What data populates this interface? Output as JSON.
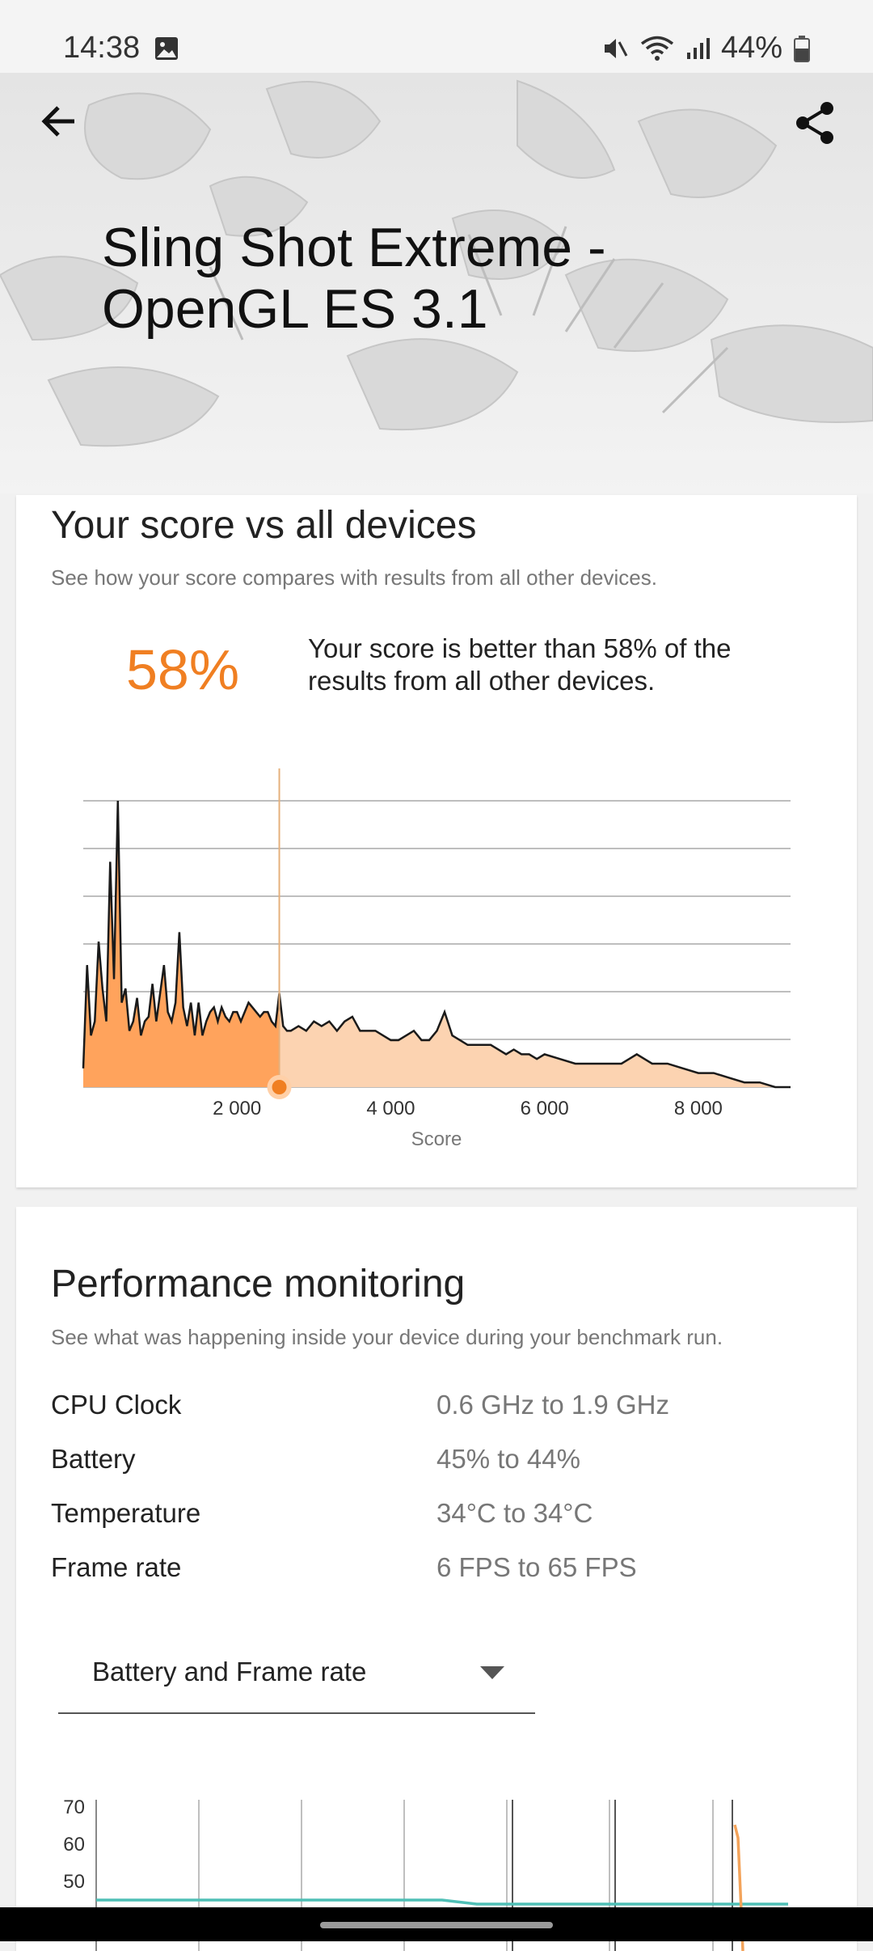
{
  "status_bar": {
    "time": "14:38",
    "battery_percent": "44%",
    "icons": [
      "gallery-icon",
      "mute-icon",
      "wifi-icon",
      "signal-icon",
      "battery-icon"
    ]
  },
  "header": {
    "title": "Sling Shot Extreme - OpenGL ES 3.1",
    "back_icon": "arrow-left-icon",
    "share_icon": "share-icon"
  },
  "score_section": {
    "title": "Your score vs all devices",
    "subtitle": "See how your score compares with results from all other devices.",
    "percentile": "58%",
    "description": "Your score is better than 58% of the results from all other devices.",
    "accent_color": "#f07f22"
  },
  "performance": {
    "title": "Performance monitoring",
    "subtitle": "See what was happening inside your device during your benchmark run.",
    "rows": [
      {
        "label": "CPU Clock",
        "value": "0.6 GHz to 1.9 GHz"
      },
      {
        "label": "Battery",
        "value": "45% to 44%"
      },
      {
        "label": "Temperature",
        "value": "34°C to 34°C"
      },
      {
        "label": "Frame rate",
        "value": "6 FPS to 65 FPS"
      }
    ],
    "dropdown": {
      "selected": "Battery and Frame rate"
    }
  },
  "chart_data": [
    {
      "type": "area",
      "xlabel": "Score",
      "x_ticks": [
        2000,
        4000,
        6000,
        8000
      ],
      "x_tick_labels": [
        "2 000",
        "4 000",
        "6 000",
        "8 000"
      ],
      "xlim": [
        0,
        9200
      ],
      "your_score": 2550,
      "highlight_color": "#f07f22",
      "fill_before": "#ffa35c",
      "fill_after": "#fcd3b1",
      "grid": true,
      "x": [
        0,
        50,
        100,
        150,
        200,
        250,
        300,
        350,
        400,
        450,
        500,
        550,
        600,
        650,
        700,
        750,
        800,
        850,
        900,
        950,
        1000,
        1050,
        1100,
        1150,
        1200,
        1250,
        1300,
        1350,
        1400,
        1450,
        1500,
        1550,
        1600,
        1650,
        1700,
        1750,
        1800,
        1850,
        1900,
        1950,
        2000,
        2050,
        2100,
        2150,
        2200,
        2250,
        2300,
        2350,
        2400,
        2450,
        2500,
        2550,
        2600,
        2650,
        2700,
        2800,
        2900,
        3000,
        3100,
        3200,
        3300,
        3400,
        3500,
        3600,
        3700,
        3800,
        3900,
        4000,
        4100,
        4200,
        4300,
        4400,
        4500,
        4600,
        4650,
        4700,
        4800,
        4900,
        5000,
        5100,
        5200,
        5300,
        5400,
        5500,
        5600,
        5700,
        5800,
        5900,
        6000,
        6200,
        6400,
        6600,
        6800,
        7000,
        7100,
        7200,
        7300,
        7400,
        7600,
        7800,
        8000,
        8200,
        8400,
        8600,
        8800,
        9000,
        9200
      ],
      "y": [
        4,
        26,
        11,
        14,
        31,
        21,
        14,
        48,
        23,
        61,
        18,
        21,
        12,
        14,
        19,
        11,
        14,
        15,
        22,
        14,
        20,
        26,
        16,
        14,
        18,
        33,
        17,
        13,
        18,
        11,
        18,
        11,
        14,
        16,
        17,
        14,
        17,
        15,
        14,
        16,
        16,
        14,
        16,
        18,
        17,
        16,
        15,
        16,
        16,
        14,
        13,
        20,
        13,
        12,
        12,
        13,
        12,
        14,
        13,
        14,
        12,
        14,
        15,
        12,
        12,
        12,
        11,
        10,
        10,
        11,
        12,
        10,
        10,
        12,
        14,
        16,
        11,
        10,
        9,
        9,
        9,
        9,
        8,
        7,
        8,
        7,
        7,
        6,
        7,
        6,
        5,
        5,
        5,
        5,
        6,
        7,
        6,
        5,
        5,
        4,
        3,
        3,
        2,
        1,
        1,
        0,
        0
      ]
    },
    {
      "type": "line",
      "series_label": "Battery and Frame rate",
      "y_ticks": [
        50,
        60,
        70
      ],
      "ylim": [
        40,
        70
      ],
      "colors": {
        "battery": "#4fbfb6",
        "frame_rate": "#f3a35a"
      },
      "series": [
        {
          "values": [
            45,
            45,
            45,
            45,
            45,
            45,
            45,
            45,
            45,
            45,
            45,
            44,
            44,
            44,
            44,
            44,
            44,
            44,
            44,
            44,
            44
          ]
        },
        {
          "values": [
            65,
            44
          ]
        }
      ]
    }
  ]
}
